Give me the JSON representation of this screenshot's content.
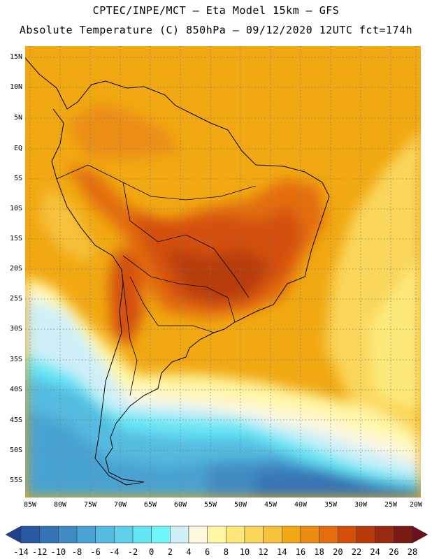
{
  "header": {
    "line1": "CPTEC/INPE/MCT –  Eta Model 15km – GFS",
    "line2": "Absolute Temperature (C) 850hPa – 09/12/2020 12UTC fct=174h"
  },
  "map": {
    "lat_labels": [
      "15N",
      "10N",
      "5N",
      "EQ",
      "5S",
      "10S",
      "15S",
      "20S",
      "25S",
      "30S",
      "35S",
      "40S",
      "45S",
      "50S",
      "55S"
    ],
    "lon_labels": [
      "85W",
      "80W",
      "75W",
      "70W",
      "65W",
      "60W",
      "55W",
      "50W",
      "45W",
      "40W",
      "35W",
      "30W",
      "25W",
      "20W"
    ]
  },
  "legend": {
    "labels": [
      "-14",
      "-12",
      "-10",
      "-8",
      "-6",
      "-4",
      "-2",
      "0",
      "2",
      "4",
      "6",
      "8",
      "10",
      "12",
      "14",
      "16",
      "18",
      "20",
      "22",
      "24",
      "26",
      "28"
    ],
    "colors": [
      "#1f3f8f",
      "#2a5aa3",
      "#3474b5",
      "#3f8cc4",
      "#4aa3d2",
      "#55bbe0",
      "#5fcfea",
      "#66e6f5",
      "#6ff6fb",
      "#cfeff8",
      "#fff8de",
      "#fff6a6",
      "#fde97a",
      "#fad65a",
      "#f7c13a",
      "#f1a812",
      "#ec8d12",
      "#e46d0c",
      "#d44f08",
      "#b83c0a",
      "#9a2a10",
      "#7a1a14",
      "#6b0f1f"
    ]
  }
}
